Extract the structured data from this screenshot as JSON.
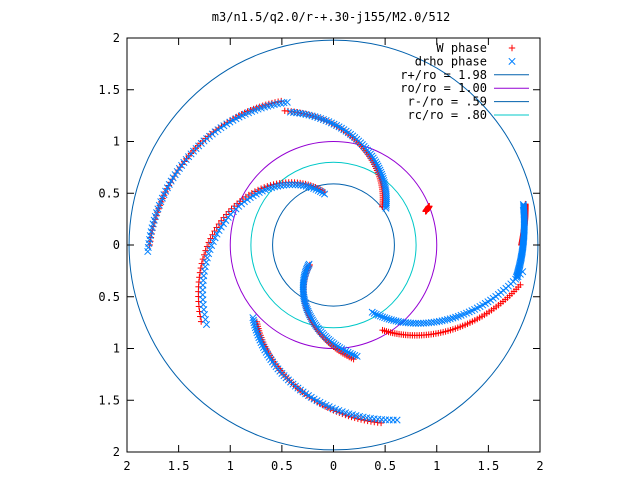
{
  "chart_data": {
    "type": "scatter",
    "title": "m3/n1.5/q2.0/r-+.30-j155/M2.0/512",
    "xlim": [
      -2,
      2
    ],
    "ylim": [
      -2,
      2
    ],
    "xtick_values": [
      -2,
      -1.5,
      -1,
      -0.5,
      0,
      0.5,
      1,
      1.5,
      2
    ],
    "xtick_labels": [
      "2",
      "1.5",
      "1",
      "0.5",
      "0",
      "0.5",
      "1",
      "1.5",
      "2"
    ],
    "ytick_values": [
      2,
      1.5,
      1,
      0.5,
      0,
      -0.5,
      -1,
      -1.5,
      -2
    ],
    "ytick_labels": [
      "2",
      "1.5",
      "1",
      "0.5",
      "0",
      "0.5",
      "1",
      "1.5",
      "2"
    ],
    "grid": false,
    "legend_position": "top-right",
    "series": [
      {
        "name": "W phase",
        "marker": "plus",
        "color": "#ff0000",
        "arms": [
          {
            "r0": 0.95,
            "r1": 1.0,
            "th0": 20,
            "th1": 22
          },
          {
            "r0": 0.6,
            "r1": 1.38,
            "th0": 38,
            "th1": 110
          },
          {
            "r0": 0.52,
            "r1": 1.48,
            "th0": 100,
            "th1": 210
          },
          {
            "r0": 1.48,
            "r1": 1.78,
            "th0": 110,
            "th1": 180
          },
          {
            "r0": 0.3,
            "r1": 1.12,
            "th0": 220,
            "th1": 280
          },
          {
            "r0": 1.05,
            "r1": 1.78,
            "th0": 225,
            "th1": 285
          },
          {
            "r0": 0.95,
            "r1": 1.85,
            "th0": 300,
            "th1": 348
          },
          {
            "r0": 1.82,
            "r1": 1.9,
            "th0": 0,
            "th1": 12
          }
        ]
      },
      {
        "name": "drho phase",
        "marker": "cross",
        "color": "#0080ff",
        "arms": [
          {
            "r0": 0.62,
            "r1": 1.35,
            "th0": 35,
            "th1": 108
          },
          {
            "r0": 0.5,
            "r1": 1.45,
            "th0": 100,
            "th1": 212
          },
          {
            "r0": 1.45,
            "r1": 1.8,
            "th0": 108,
            "th1": 182
          },
          {
            "r0": 0.3,
            "r1": 1.1,
            "th0": 218,
            "th1": 282
          },
          {
            "r0": 1.05,
            "r1": 1.8,
            "th0": 222,
            "th1": 290
          },
          {
            "r0": 0.75,
            "r1": 1.85,
            "th0": 300,
            "th1": 352
          },
          {
            "r0": 1.8,
            "r1": 1.88,
            "th0": 350,
            "th1": 372
          }
        ]
      },
      {
        "name": "r+/ro = 1.98",
        "kind": "circle",
        "r": 1.98,
        "color": "#0060ad"
      },
      {
        "name": "ro/ro = 1.00",
        "kind": "circle",
        "r": 1.0,
        "color": "#9400d3"
      },
      {
        "name": "r-/ro = .59",
        "kind": "circle",
        "r": 0.59,
        "color": "#0060ad"
      },
      {
        "name": "rc/ro = .80",
        "kind": "circle",
        "r": 0.8,
        "color": "#00c8c8"
      }
    ]
  }
}
